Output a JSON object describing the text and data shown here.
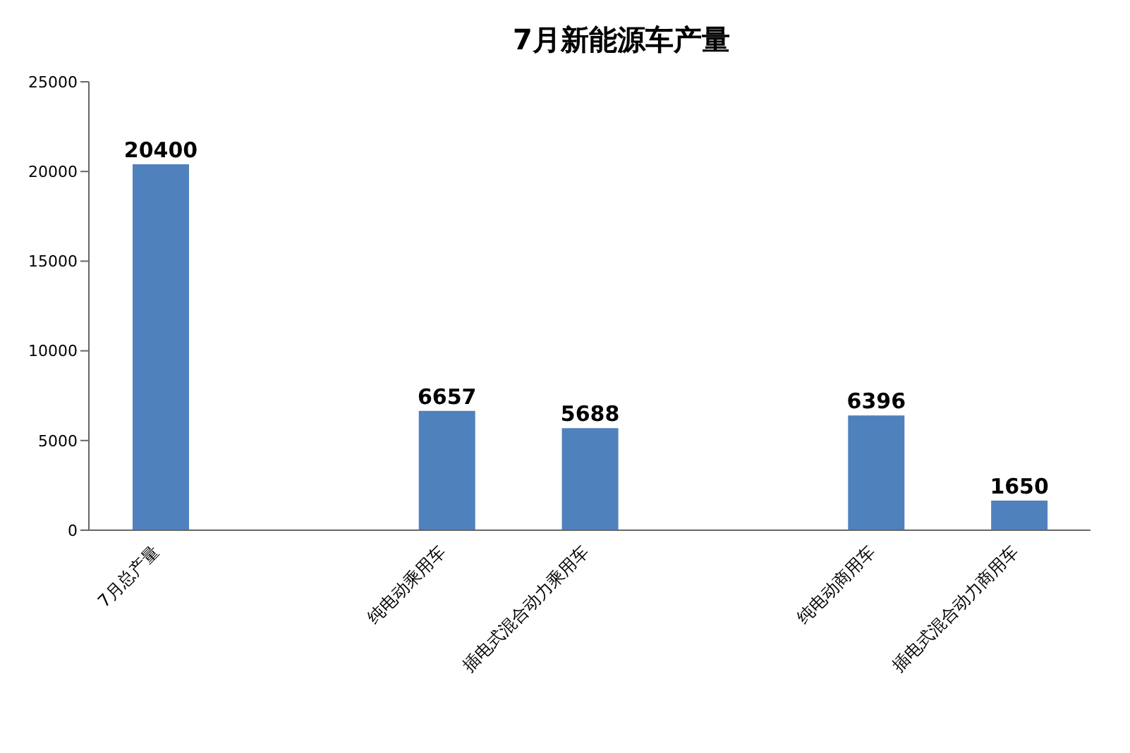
{
  "chart_data": {
    "type": "bar",
    "title": "7月新能源车产量",
    "categories": [
      "7月总产量",
      null,
      "纯电动乘用车",
      "插电式混合动力乘用车",
      null,
      "纯电动商用车",
      "插电式混合动力商用车"
    ],
    "values": [
      20400,
      null,
      6657,
      5688,
      null,
      6396,
      1650
    ],
    "color": "#4f81bd",
    "ylim": [
      0,
      25000
    ],
    "yticks": [
      0,
      5000,
      10000,
      15000,
      20000,
      25000
    ],
    "grid": false,
    "data_labels": true
  }
}
